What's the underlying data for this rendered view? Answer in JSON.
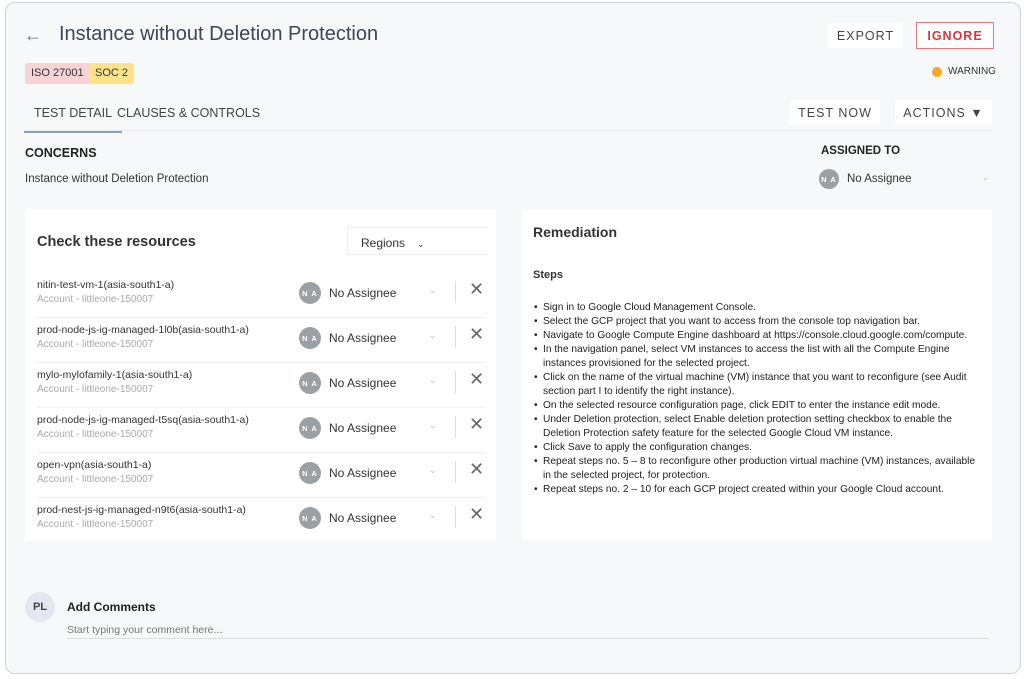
{
  "header": {
    "title": "Instance without Deletion Protection",
    "tags": [
      {
        "label": "ISO 27001",
        "color": "#f6d3d5"
      },
      {
        "label": "SOC 2",
        "color": "#fbe28b"
      }
    ],
    "export_label": "EXPORT",
    "ignore_label": "IGNORE",
    "status": "WARNING",
    "status_color": "#f5a623"
  },
  "tabs": [
    {
      "label": "TEST DETAIL",
      "active": true
    },
    {
      "label": "CLAUSES & CONTROLS",
      "active": false
    }
  ],
  "toolbar": {
    "test_now": "TEST NOW",
    "actions": "ACTIONS ▼"
  },
  "concerns": {
    "heading": "CONCERNS",
    "text": "Instance without Deletion Protection"
  },
  "assigned": {
    "heading": "ASSIGNED TO",
    "initials": "N A",
    "name": "No Assignee"
  },
  "resources": {
    "title": "Check these resources",
    "filter": "Regions",
    "items": [
      {
        "name": "nitin-test-vm-1(asia-south1-a)",
        "account": "Account - littleone-150007",
        "initials": "N A",
        "assignee": "No Assignee"
      },
      {
        "name": "prod-node-js-ig-managed-1l0b(asia-south1-a)",
        "account": "Account - littleone-150007",
        "initials": "N A",
        "assignee": "No Assignee"
      },
      {
        "name": "mylo-mylofamily-1(asia-south1-a)",
        "account": "Account - littleone-150007",
        "initials": "N A",
        "assignee": "No Assignee"
      },
      {
        "name": "prod-node-js-ig-managed-t5sq(asia-south1-a)",
        "account": "Account - littleone-150007",
        "initials": "N A",
        "assignee": "No Assignee"
      },
      {
        "name": "open-vpn(asia-south1-a)",
        "account": "Account - littleone-150007",
        "initials": "N A",
        "assignee": "No Assignee"
      },
      {
        "name": "prod-nest-js-ig-managed-n9t6(asia-south1-a)",
        "account": "Account - littleone-150007",
        "initials": "N A",
        "assignee": "No Assignee"
      }
    ]
  },
  "remediation": {
    "title": "Remediation",
    "steps_heading": "Steps",
    "steps": [
      "Sign in to Google Cloud Management Console.",
      "Select the GCP project that you want to access from the console top navigation bar.",
      "Navigate to Google Compute Engine dashboard at https://console.cloud.google.com/compute.",
      "In the navigation panel, select VM instances to access the list with all the Compute Engine instances provisioned for the selected project.",
      "Click on the name of the virtual machine (VM) instance that you want to reconfigure (see Audit section part I to identify the right instance).",
      "On the selected resource configuration page, click EDIT to enter the instance edit mode.",
      "Under Deletion protection, select Enable deletion protection setting checkbox to enable the Deletion Protection safety feature for the selected Google Cloud VM instance.",
      "Click Save to apply the configuration changes.",
      "Repeat steps no. 5 – 8 to reconfigure other production virtual machine (VM) instances, available in the selected project, for protection.",
      "Repeat steps no. 2 – 10 for each GCP project created within your Google Cloud account."
    ]
  },
  "comments": {
    "initials": "PL",
    "heading": "Add Comments",
    "placeholder": "Start typing your comment here..."
  }
}
